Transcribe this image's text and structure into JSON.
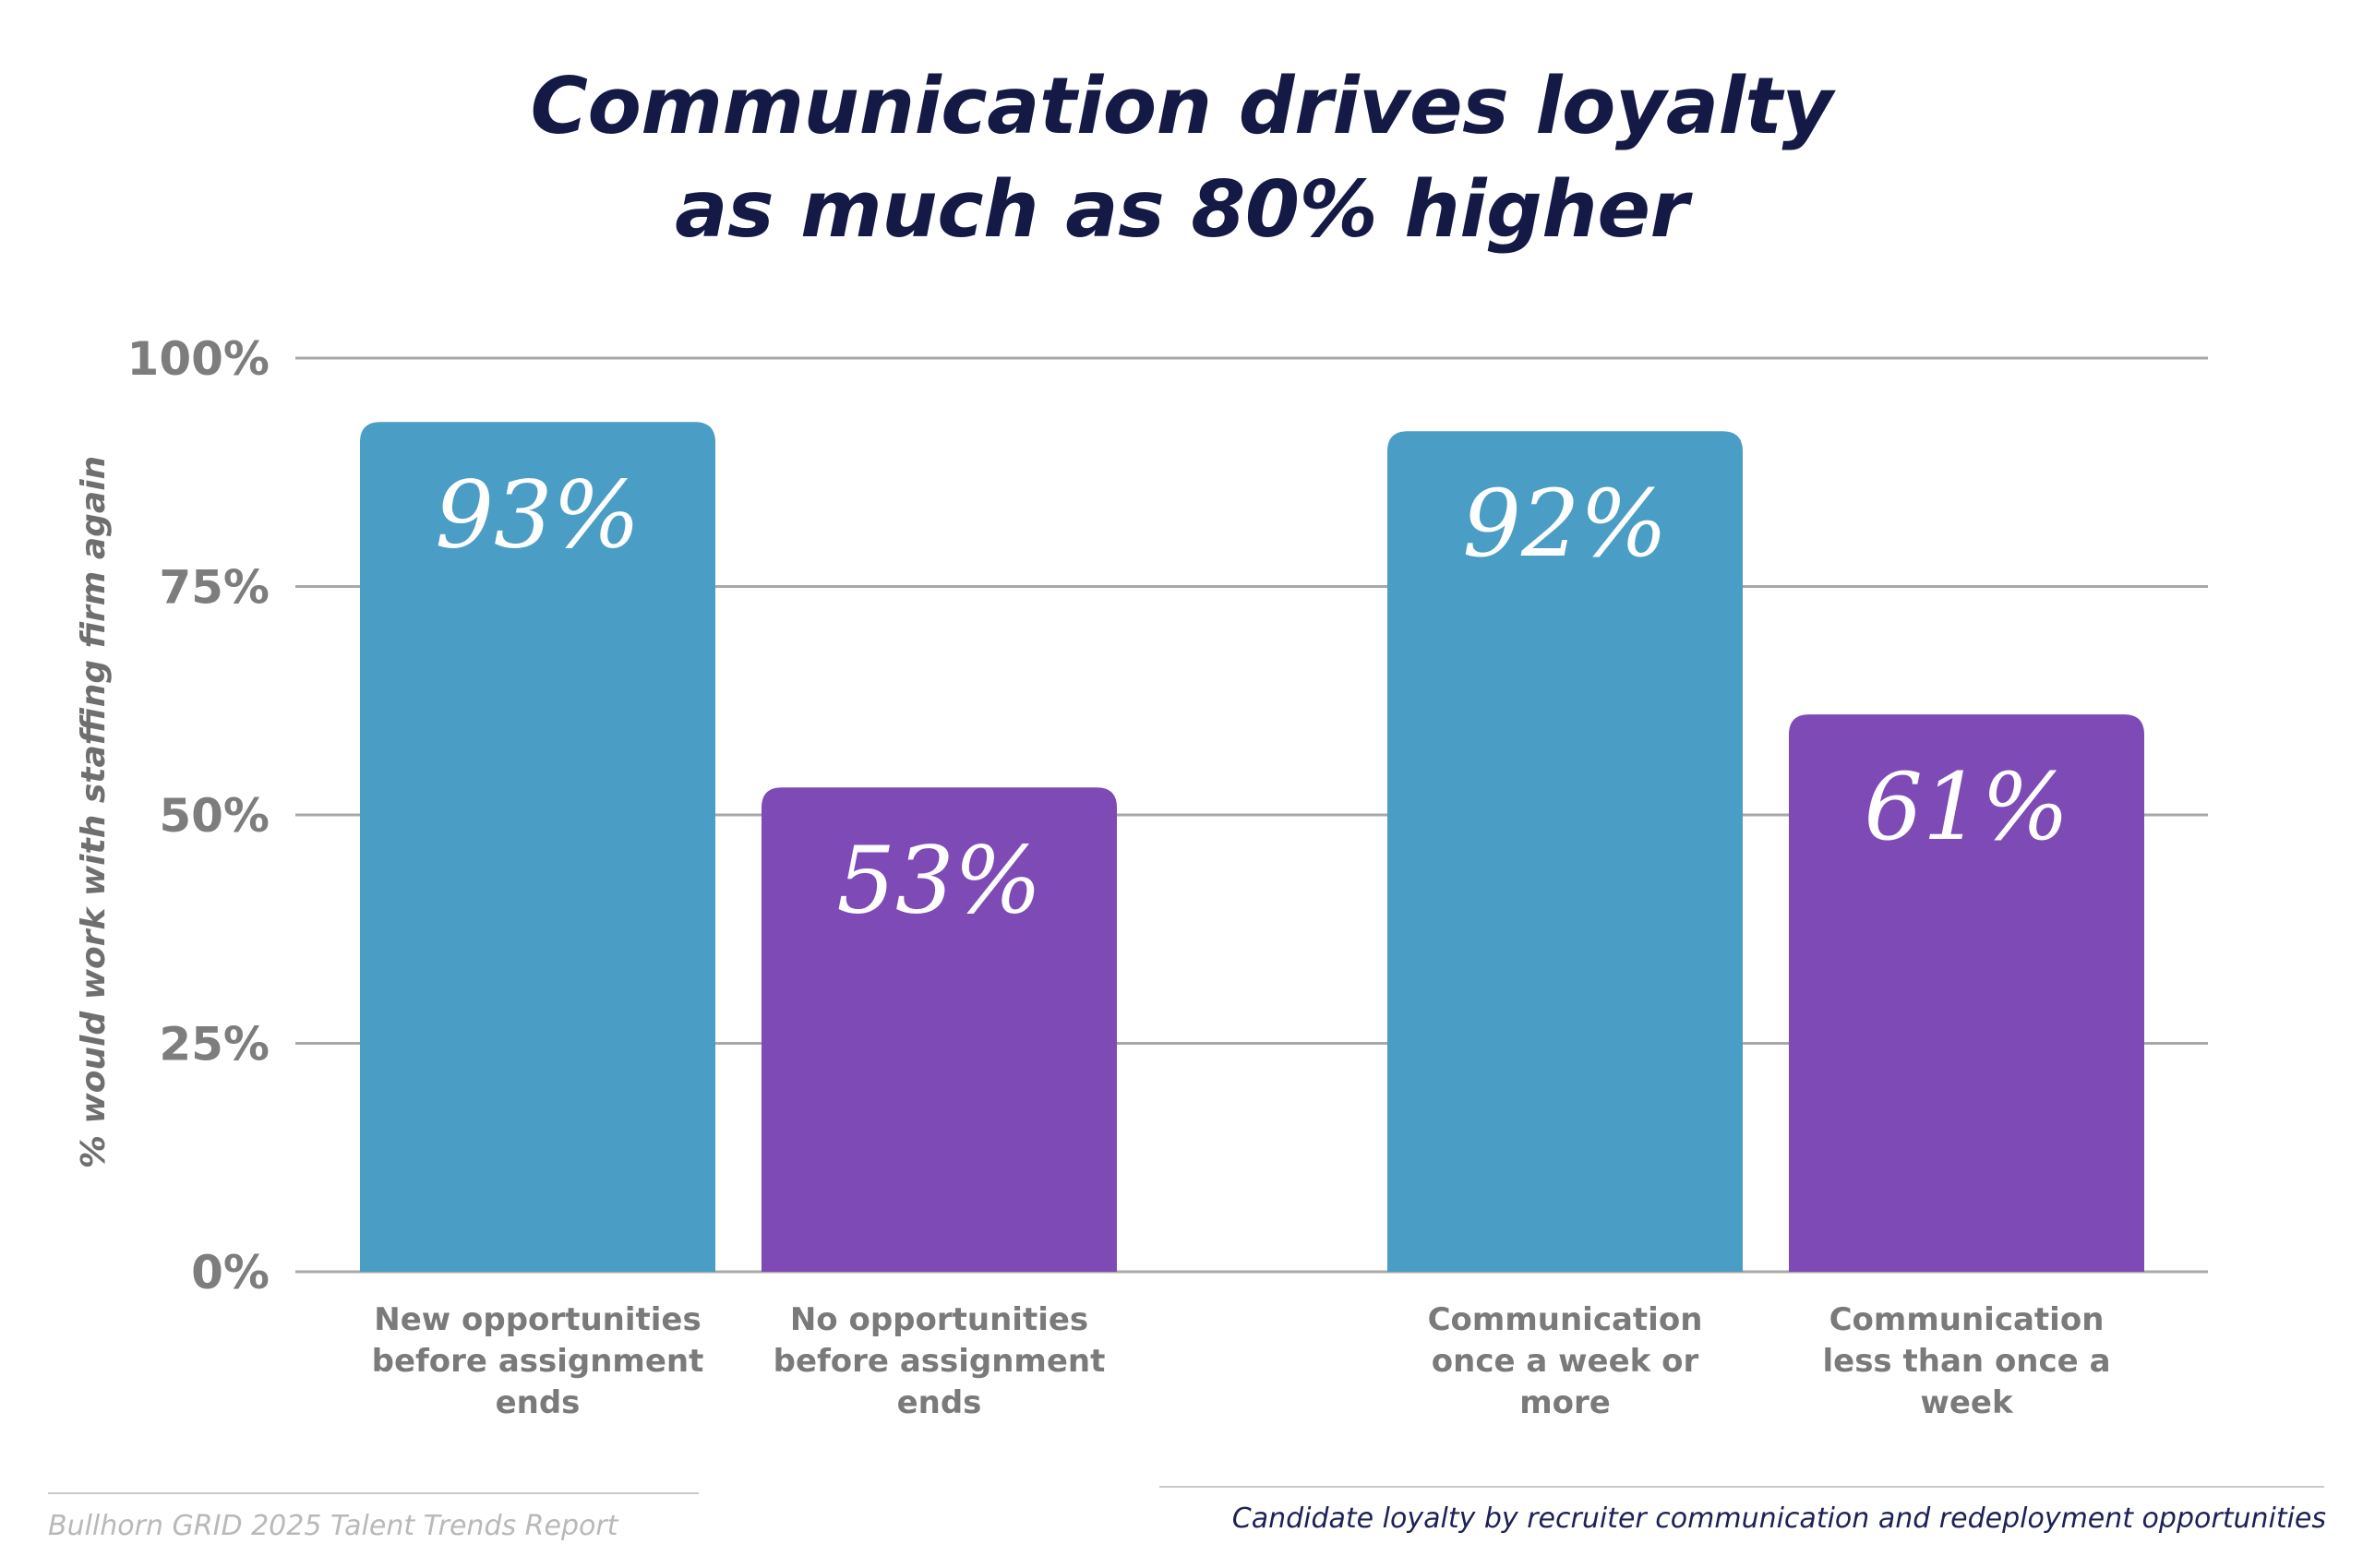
{
  "chart_data": {
    "type": "bar",
    "title": [
      "Communication drives loyalty",
      "as much as 80% higher"
    ],
    "ylabel": "% would work with staffing firm again",
    "xlabel": "",
    "ylim": [
      0,
      100
    ],
    "yticks": [
      0,
      25,
      50,
      75,
      100
    ],
    "ytick_labels": [
      "0%",
      "25%",
      "50%",
      "75%",
      "100%"
    ],
    "grid": true,
    "categories": [
      [
        "New opportunities",
        "before assignment",
        "ends"
      ],
      [
        "No opportunities",
        "before assignment",
        "ends"
      ],
      [
        "Communication",
        "once a week or",
        "more"
      ],
      [
        "Communication",
        "less than once a",
        "week"
      ]
    ],
    "values": [
      93,
      53,
      92,
      61
    ],
    "data_labels": [
      "93%",
      "53%",
      "92%",
      "61%"
    ],
    "bar_colors": [
      "#4a9dc4",
      "#7e4ab5",
      "#4a9dc4",
      "#7e4ab5"
    ]
  },
  "footer": {
    "source": "Bullhorn GRID 2025 Talent Trends Report",
    "caption": "Candidate loyalty by recruiter communication and redeployment opportunities"
  },
  "colors": {
    "title": "#141a45",
    "grid": "#a8a8a8",
    "axis_text": "#7d7d7d",
    "caption": "#1d2155"
  }
}
